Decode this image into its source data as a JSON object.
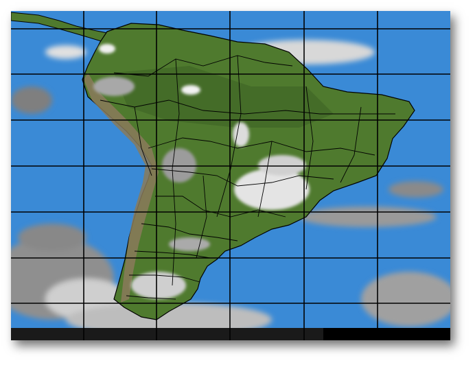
{
  "colors": {
    "ocean": "#3a8ad6",
    "land": "#4f7a2e",
    "land_dark": "#3d6324",
    "andes": "#8a7a5a",
    "cloud": "#e8e8e8",
    "cloud_grey": "#9a9a9a",
    "grid": "#000000",
    "borders": "#000000"
  },
  "grid": {
    "vertical_lines": 5,
    "horizontal_lines": 7
  }
}
